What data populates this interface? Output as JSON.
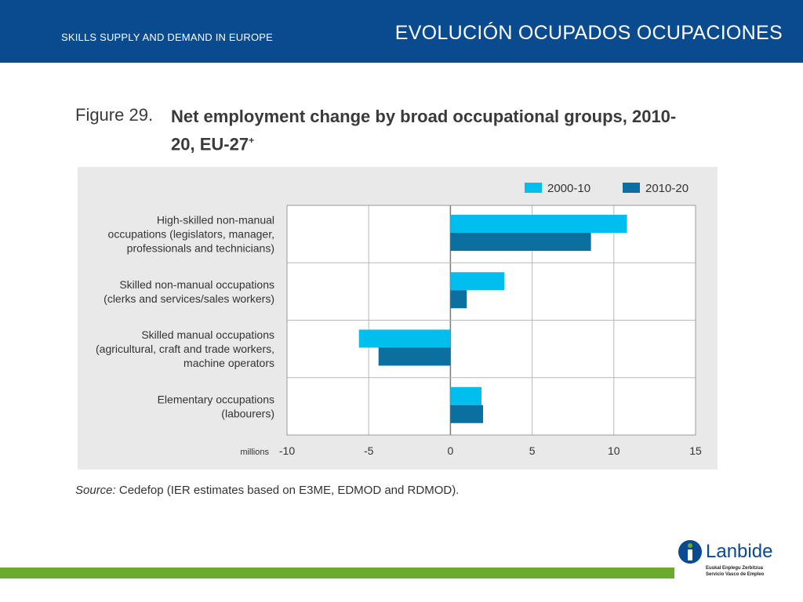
{
  "header": {
    "subtitle": "SKILLS SUPPLY AND DEMAND IN EUROPE",
    "title": "EVOLUCIÓN OCUPADOS OCUPACIONES"
  },
  "figure": {
    "label": "Figure 29.",
    "title": "Net employment change by broad occupational groups, 2010-20, EU-27",
    "title_sup": "+"
  },
  "source": {
    "label": "Source:",
    "text": " Cedefop (IER estimates based on E3ME, EDMOD and RDMOD)."
  },
  "logo": {
    "name": "Lanbide",
    "line1": "Euskal Enplegu Zerbitzua",
    "line2": "Servicio Vasco de Empleo"
  },
  "colors": {
    "header_bg": "#0a4a8f",
    "series_2000_10": "#00bfef",
    "series_2010_20": "#0b6fa0",
    "footer_green": "#6aab2e"
  },
  "chart_data": {
    "type": "bar",
    "orientation": "horizontal",
    "categories": [
      [
        "High-skilled non-manual",
        "occupations (legislators, manager,",
        "professionals and technicians)"
      ],
      [
        "Skilled non-manual occupations",
        "(clerks and services/sales workers)"
      ],
      [
        "Skilled manual occupations",
        "(agricultural, craft and trade workers,",
        "machine operators"
      ],
      [
        "Elementary occupations",
        "(labourers)"
      ]
    ],
    "series": [
      {
        "name": "2000-10",
        "values": [
          10.8,
          3.3,
          -5.6,
          1.9
        ]
      },
      {
        "name": "2010-20",
        "values": [
          8.6,
          1.0,
          -4.4,
          2.0
        ]
      }
    ],
    "xlim": [
      -10,
      15
    ],
    "xticks": [
      -10,
      -5,
      0,
      5,
      10,
      15
    ],
    "xunit_label": "millions",
    "grid": true,
    "legend_position": "top-right"
  }
}
